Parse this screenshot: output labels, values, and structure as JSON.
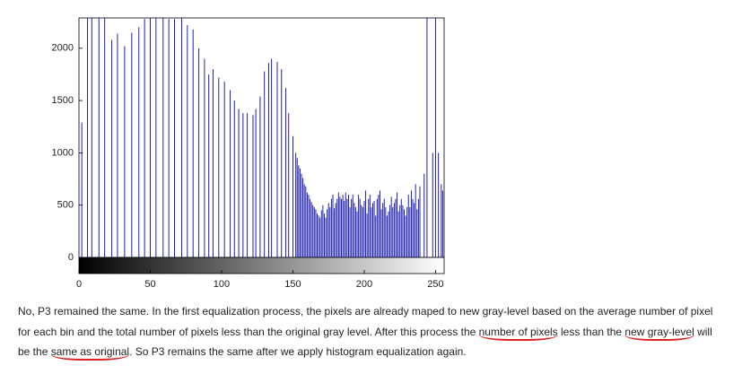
{
  "chart_data": {
    "type": "stem",
    "color": "#1f1fb0",
    "xlim": [
      0,
      256
    ],
    "ylim": [
      0,
      2290
    ],
    "xticks": [
      0,
      50,
      100,
      150,
      200,
      250
    ],
    "yticks": [
      0,
      500,
      1000,
      1500,
      2000
    ],
    "x": [
      0,
      2,
      6,
      9,
      14,
      18,
      23,
      27,
      32,
      37,
      42,
      46,
      50,
      54,
      59,
      63,
      67,
      72,
      76,
      80,
      84,
      88,
      91,
      94,
      98,
      102,
      106,
      109,
      112,
      115,
      118,
      122,
      124,
      127,
      130,
      133,
      135,
      139,
      142,
      145,
      147,
      150,
      152,
      153,
      154,
      155,
      156,
      157,
      158,
      159,
      160,
      161,
      162,
      163,
      164,
      165,
      166,
      167,
      168,
      169,
      170,
      171,
      172,
      173,
      174,
      175,
      176,
      177,
      178,
      179,
      180,
      181,
      182,
      183,
      184,
      185,
      186,
      187,
      188,
      189,
      190,
      191,
      192,
      193,
      194,
      195,
      196,
      197,
      198,
      199,
      200,
      201,
      202,
      203,
      204,
      205,
      206,
      207,
      208,
      209,
      210,
      211,
      212,
      213,
      214,
      215,
      216,
      217,
      218,
      219,
      220,
      221,
      222,
      223,
      224,
      225,
      226,
      227,
      228,
      229,
      230,
      231,
      232,
      233,
      234,
      235,
      236,
      237,
      238,
      239,
      242,
      244,
      248,
      250,
      252,
      254,
      255
    ],
    "values": [
      700,
      1290,
      2500,
      2500,
      2500,
      2500,
      2080,
      2140,
      2020,
      2150,
      2200,
      2280,
      2500,
      2500,
      2500,
      2280,
      2280,
      2500,
      2220,
      2180,
      2000,
      1900,
      1750,
      1800,
      1720,
      1680,
      1600,
      1500,
      1420,
      1380,
      1380,
      1360,
      1420,
      1540,
      1780,
      1860,
      1900,
      1870,
      1800,
      1620,
      1380,
      1160,
      1000,
      950,
      880,
      850,
      800,
      760,
      700,
      680,
      620,
      600,
      560,
      530,
      500,
      480,
      460,
      420,
      400,
      380,
      450,
      500,
      420,
      380,
      460,
      520,
      480,
      560,
      600,
      470,
      520,
      560,
      620,
      580,
      560,
      600,
      540,
      620,
      560,
      600,
      480,
      560,
      600,
      520,
      480,
      440,
      600,
      560,
      500,
      480,
      540,
      640,
      420,
      560,
      600,
      480,
      520,
      540,
      400,
      560,
      600,
      640,
      460,
      520,
      560,
      480,
      400,
      440,
      500,
      580,
      480,
      520,
      560,
      620,
      440,
      500,
      560,
      500,
      460,
      400,
      480,
      600,
      480,
      640,
      560,
      520,
      700,
      460,
      560,
      680,
      800,
      2500,
      1000,
      2500,
      1000,
      700,
      640
    ]
  },
  "text": {
    "lines": [
      [
        "No, P3 remained the same. In the first equalization process, the pixels are already maped to new gray-level based on the average number of pixel"
      ],
      [
        "for each bin and the total number of pixels less than the original gray level. After this process the ",
        "number of pixels",
        " less than the ",
        "new gray-level",
        " will"
      ],
      [
        "be the ",
        "same as original",
        ". So P3 remains the same after we apply histogram equalization again."
      ]
    ]
  }
}
